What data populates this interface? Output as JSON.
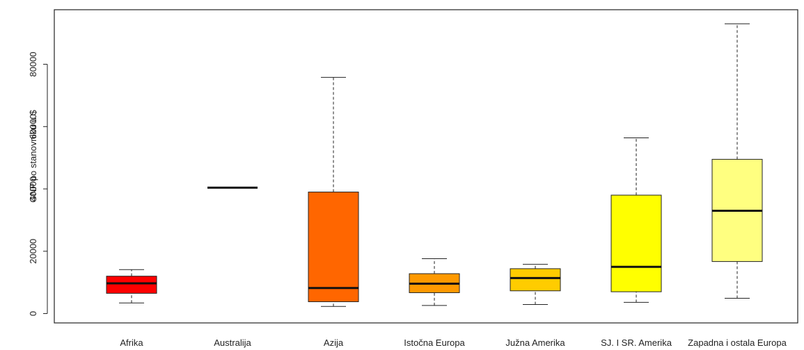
{
  "chart_data": {
    "type": "boxplot",
    "title": "",
    "xlabel": "",
    "ylabel": "GNP po stanovniku u $",
    "ylim": [
      -3000,
      97500
    ],
    "yticks": [
      0,
      20000,
      40000,
      60000,
      80000
    ],
    "ytick_labels": [
      "0",
      "20000",
      "40000",
      "60000",
      "80000"
    ],
    "grid": false,
    "categories": [
      "Afrika",
      "Australija",
      "Azija",
      "Istočna Europa",
      "Južna Amerika",
      "SJ. I SR. Amerika",
      "Zapadna i ostala Europa"
    ],
    "boxes": [
      {
        "whisker_low": 3400,
        "q1": 6500,
        "median": 9700,
        "q3": 12000,
        "whisker_high": 14100,
        "color": "#ff0000"
      },
      {
        "whisker_low": 40400,
        "q1": 40400,
        "median": 40400,
        "q3": 40400,
        "whisker_high": 40400,
        "color": "#ff2d00"
      },
      {
        "whisker_low": 2300,
        "q1": 3800,
        "median": 8200,
        "q3": 39000,
        "whisker_high": 75800,
        "color": "#ff6600"
      },
      {
        "whisker_low": 2600,
        "q1": 6700,
        "median": 9600,
        "q3": 12800,
        "whisker_high": 17600,
        "color": "#ff9900"
      },
      {
        "whisker_low": 2900,
        "q1": 7300,
        "median": 11400,
        "q3": 14400,
        "whisker_high": 15800,
        "color": "#ffcc00"
      },
      {
        "whisker_low": 3600,
        "q1": 7000,
        "median": 15000,
        "q3": 38000,
        "whisker_high": 56400,
        "color": "#ffff00"
      },
      {
        "whisker_low": 4900,
        "q1": 16700,
        "median": 33000,
        "q3": 49500,
        "whisker_high": 93000,
        "color": "#ffff80"
      }
    ]
  }
}
